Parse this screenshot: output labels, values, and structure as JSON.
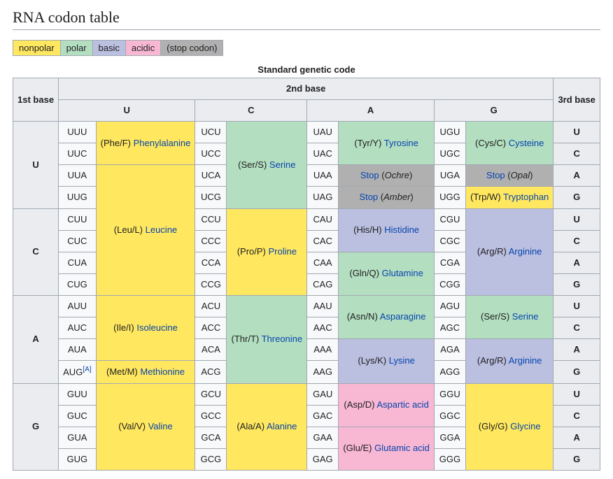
{
  "title": "RNA codon table",
  "legend": [
    {
      "label": "nonpolar",
      "bg": "#ffe75f"
    },
    {
      "label": "polar",
      "bg": "#b3dec0"
    },
    {
      "label": "basic",
      "bg": "#bbbfe0"
    },
    {
      "label": "acidic",
      "bg": "#f8b7d3"
    },
    {
      "label": "(stop codon)",
      "bg": "#b0b0b0"
    }
  ],
  "colors": {
    "nonpolar": "#ffe75f",
    "polar": "#b3dec0",
    "basic": "#bbbfe0",
    "acidic": "#f8b7d3",
    "stop": "#b0b0b0"
  },
  "caption": "Standard genetic code",
  "headers": {
    "first": "1st base",
    "second": "2nd base",
    "third": "3rd base",
    "cols": [
      "U",
      "C",
      "A",
      "G"
    ]
  },
  "bases": [
    "U",
    "C",
    "A",
    "G"
  ],
  "amino": {
    "Phe": {
      "short": "(Phe/F)",
      "name": "Phenylalanine",
      "class": "nonpolar"
    },
    "Leu": {
      "short": "(Leu/L)",
      "name": "Leucine",
      "class": "nonpolar"
    },
    "Ser": {
      "short": "(Ser/S)",
      "name": "Serine",
      "class": "polar"
    },
    "Tyr": {
      "short": "(Tyr/Y)",
      "name": "Tyrosine",
      "class": "polar"
    },
    "Cys": {
      "short": "(Cys/C)",
      "name": "Cysteine",
      "class": "polar"
    },
    "Trp": {
      "short": "(Trp/W)",
      "name": "Tryptophan",
      "class": "nonpolar"
    },
    "Pro": {
      "short": "(Pro/P)",
      "name": "Proline",
      "class": "nonpolar"
    },
    "His": {
      "short": "(His/H)",
      "name": "Histidine",
      "class": "basic"
    },
    "Gln": {
      "short": "(Gln/Q)",
      "name": "Glutamine",
      "class": "polar"
    },
    "Arg": {
      "short": "(Arg/R)",
      "name": "Arginine",
      "class": "basic"
    },
    "Ile": {
      "short": "(Ile/I)",
      "name": "Isoleucine",
      "class": "nonpolar"
    },
    "Met": {
      "short": "(Met/M)",
      "name": "Methionine",
      "class": "nonpolar"
    },
    "Thr": {
      "short": "(Thr/T)",
      "name": "Threonine",
      "class": "polar"
    },
    "Asn": {
      "short": "(Asn/N)",
      "name": "Asparagine",
      "class": "polar"
    },
    "Lys": {
      "short": "(Lys/K)",
      "name": "Lysine",
      "class": "basic"
    },
    "Val": {
      "short": "(Val/V)",
      "name": "Valine",
      "class": "nonpolar"
    },
    "Ala": {
      "short": "(Ala/A)",
      "name": "Alanine",
      "class": "nonpolar"
    },
    "Asp": {
      "short": "(Asp/D)",
      "name": "Aspartic acid",
      "class": "acidic"
    },
    "Glu": {
      "short": "(Glu/E)",
      "name": "Glutamic acid",
      "class": "acidic"
    },
    "Gly": {
      "short": "(Gly/G)",
      "name": "Glycine",
      "class": "nonpolar"
    }
  },
  "stopLabel": "Stop",
  "stopNames": {
    "Ochre": "Ochre",
    "Amber": "Amber",
    "Opal": "Opal"
  },
  "startRef": "[A]",
  "rows": [
    {
      "first": "U",
      "lines": [
        {
          "third": "U",
          "c1": "UUU",
          "aa1": {
            "key": "Phe",
            "span": 2
          },
          "c2": "UCU",
          "aa2": {
            "key": "Ser",
            "span": 4
          },
          "c3": "UAU",
          "aa3": {
            "key": "Tyr",
            "span": 2
          },
          "c4": "UGU",
          "aa4": {
            "key": "Cys",
            "span": 2
          }
        },
        {
          "third": "C",
          "c1": "UUC",
          "c2": "UCC",
          "c3": "UAC",
          "c4": "UGC"
        },
        {
          "third": "A",
          "c1": "UUA",
          "aa1": {
            "key": "Leu",
            "span": 6
          },
          "c2": "UCA",
          "c3": "UAA",
          "aa3": {
            "stop": "Ochre",
            "span": 1
          },
          "c4": "UGA",
          "aa4": {
            "stop": "Opal",
            "span": 1
          }
        },
        {
          "third": "G",
          "c1": "UUG",
          "c2": "UCG",
          "c3": "UAG",
          "aa3": {
            "stop": "Amber",
            "span": 1
          },
          "c4": "UGG",
          "aa4": {
            "key": "Trp",
            "span": 1
          }
        }
      ]
    },
    {
      "first": "C",
      "lines": [
        {
          "third": "U",
          "c1": "CUU",
          "c2": "CCU",
          "aa2": {
            "key": "Pro",
            "span": 4
          },
          "c3": "CAU",
          "aa3": {
            "key": "His",
            "span": 2
          },
          "c4": "CGU",
          "aa4": {
            "key": "Arg",
            "span": 4
          }
        },
        {
          "third": "C",
          "c1": "CUC",
          "c2": "CCC",
          "c3": "CAC",
          "c4": "CGC"
        },
        {
          "third": "A",
          "c1": "CUA",
          "c2": "CCA",
          "c3": "CAA",
          "aa3": {
            "key": "Gln",
            "span": 2
          },
          "c4": "CGA"
        },
        {
          "third": "G",
          "c1": "CUG",
          "c2": "CCG",
          "c3": "CAG",
          "c4": "CGG"
        }
      ]
    },
    {
      "first": "A",
      "lines": [
        {
          "third": "U",
          "c1": "AUU",
          "aa1": {
            "key": "Ile",
            "span": 3
          },
          "c2": "ACU",
          "aa2": {
            "key": "Thr",
            "span": 4
          },
          "c3": "AAU",
          "aa3": {
            "key": "Asn",
            "span": 2
          },
          "c4": "AGU",
          "aa4": {
            "key": "Ser",
            "span": 2
          }
        },
        {
          "third": "C",
          "c1": "AUC",
          "c2": "ACC",
          "c3": "AAC",
          "c4": "AGC"
        },
        {
          "third": "A",
          "c1": "AUA",
          "c2": "ACA",
          "c3": "AAA",
          "aa3": {
            "key": "Lys",
            "span": 2
          },
          "c4": "AGA",
          "aa4": {
            "key": "Arg",
            "span": 2
          }
        },
        {
          "third": "G",
          "c1": "AUG",
          "ref": true,
          "aa1": {
            "key": "Met",
            "span": 1
          },
          "c2": "ACG",
          "c3": "AAG",
          "c4": "AGG"
        }
      ]
    },
    {
      "first": "G",
      "lines": [
        {
          "third": "U",
          "c1": "GUU",
          "aa1": {
            "key": "Val",
            "span": 4
          },
          "c2": "GCU",
          "aa2": {
            "key": "Ala",
            "span": 4
          },
          "c3": "GAU",
          "aa3": {
            "key": "Asp",
            "span": 2
          },
          "c4": "GGU",
          "aa4": {
            "key": "Gly",
            "span": 4
          }
        },
        {
          "third": "C",
          "c1": "GUC",
          "c2": "GCC",
          "c3": "GAC",
          "c4": "GGC"
        },
        {
          "third": "A",
          "c1": "GUA",
          "c2": "GCA",
          "c3": "GAA",
          "aa3": {
            "key": "Glu",
            "span": 2
          },
          "c4": "GGA"
        },
        {
          "third": "G",
          "c1": "GUG",
          "c2": "GCG",
          "c3": "GAG",
          "c4": "GGG"
        }
      ]
    }
  ]
}
